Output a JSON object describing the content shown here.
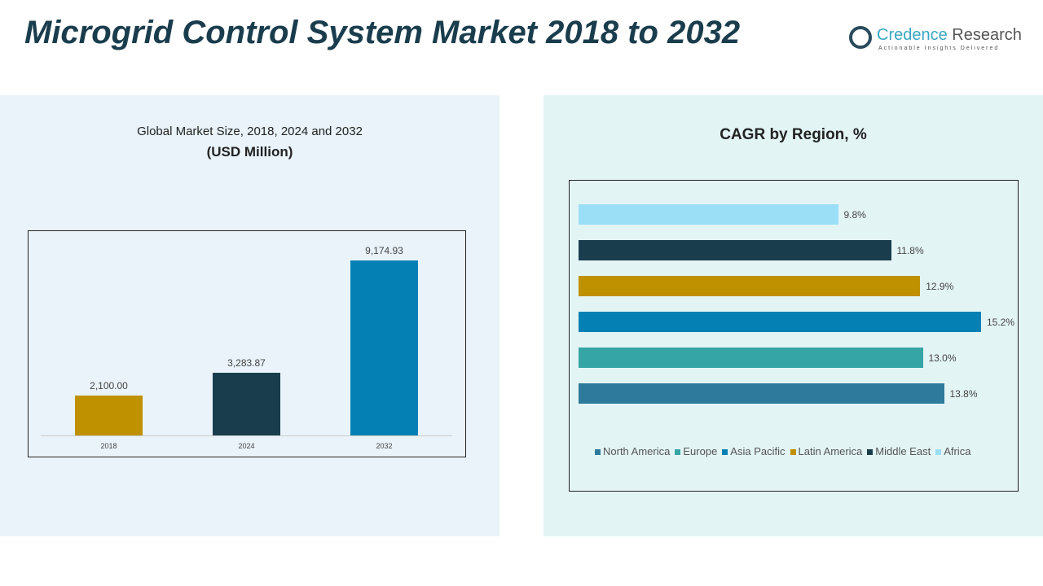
{
  "title": "Microgrid Control System Market 2018 to 2032",
  "logo": {
    "name_a": "Credence",
    "name_b": "Research",
    "tagline": "Actionable Insights Delivered"
  },
  "chart_data": [
    {
      "type": "bar",
      "title": "Global Market Size, 2018, 2024 and 2032",
      "subtitle": "(USD Million)",
      "categories": [
        "2018",
        "2024",
        "2032"
      ],
      "values": [
        2100.0,
        3283.87,
        9174.93
      ],
      "labels": [
        "2,100.00",
        "3,283.87",
        "9,174.93"
      ],
      "colors": [
        "#bf9000",
        "#1a3d4d",
        "#0580b4"
      ],
      "ylim": [
        0,
        9174.93
      ]
    },
    {
      "type": "bar",
      "orientation": "horizontal",
      "title": "CAGR by Region, %",
      "categories": [
        "Africa",
        "Middle East",
        "Latin America",
        "Asia Pacific",
        "Europe",
        "North America"
      ],
      "values": [
        9.8,
        11.8,
        12.9,
        15.2,
        13.0,
        13.8
      ],
      "labels": [
        "9.8%",
        "11.8%",
        "12.9%",
        "15.2%",
        "13.0%",
        "13.8%"
      ],
      "colors": [
        "#9bdff7",
        "#1a3d4d",
        "#bf9000",
        "#0580b4",
        "#35a5a5",
        "#2e7a9c"
      ],
      "legend": [
        "North America",
        "Europe",
        "Asia Pacific",
        "Latin America",
        "Middle East",
        "Africa"
      ],
      "legend_colors": [
        "#2e7a9c",
        "#35a5a5",
        "#0580b4",
        "#bf9000",
        "#1a3d4d",
        "#9bdff7"
      ],
      "legend_position": "bottom"
    }
  ]
}
